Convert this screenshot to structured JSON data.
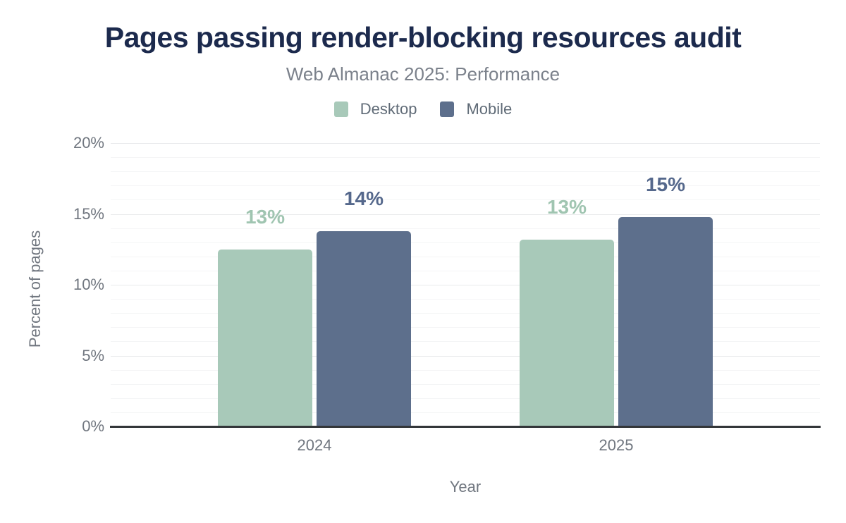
{
  "chart_data": {
    "type": "bar",
    "title": "Pages passing render-blocking resources audit",
    "subtitle": "Web Almanac 2025: Performance",
    "xlabel": "Year",
    "ylabel": "Percent of pages",
    "categories": [
      "2024",
      "2025"
    ],
    "series": [
      {
        "name": "Desktop",
        "color": "#a8c9b9",
        "label_color": "#a0c5b1",
        "values": [
          12.5,
          13.2
        ],
        "labels": [
          "13%",
          "13%"
        ]
      },
      {
        "name": "Mobile",
        "color": "#5d6f8c",
        "label_color": "#55688c",
        "values": [
          13.8,
          14.8
        ],
        "labels": [
          "14%",
          "15%"
        ]
      }
    ],
    "y_axis": {
      "min": 0,
      "max": 20,
      "major_tick_step": 5,
      "minor_gridline_step": 1,
      "tick_labels": [
        "0%",
        "5%",
        "10%",
        "15%",
        "20%"
      ]
    },
    "legend_position": "top",
    "grid": true
  },
  "colors": {
    "title": "#1c2a4d",
    "subtitle": "#7b818b",
    "legend_text": "#606b77",
    "axis_text": "#70767f",
    "axis_line": "#333639",
    "grid_major": "#e9eaec",
    "grid_minor": "#f4f5f6",
    "background": "#ffffff"
  }
}
